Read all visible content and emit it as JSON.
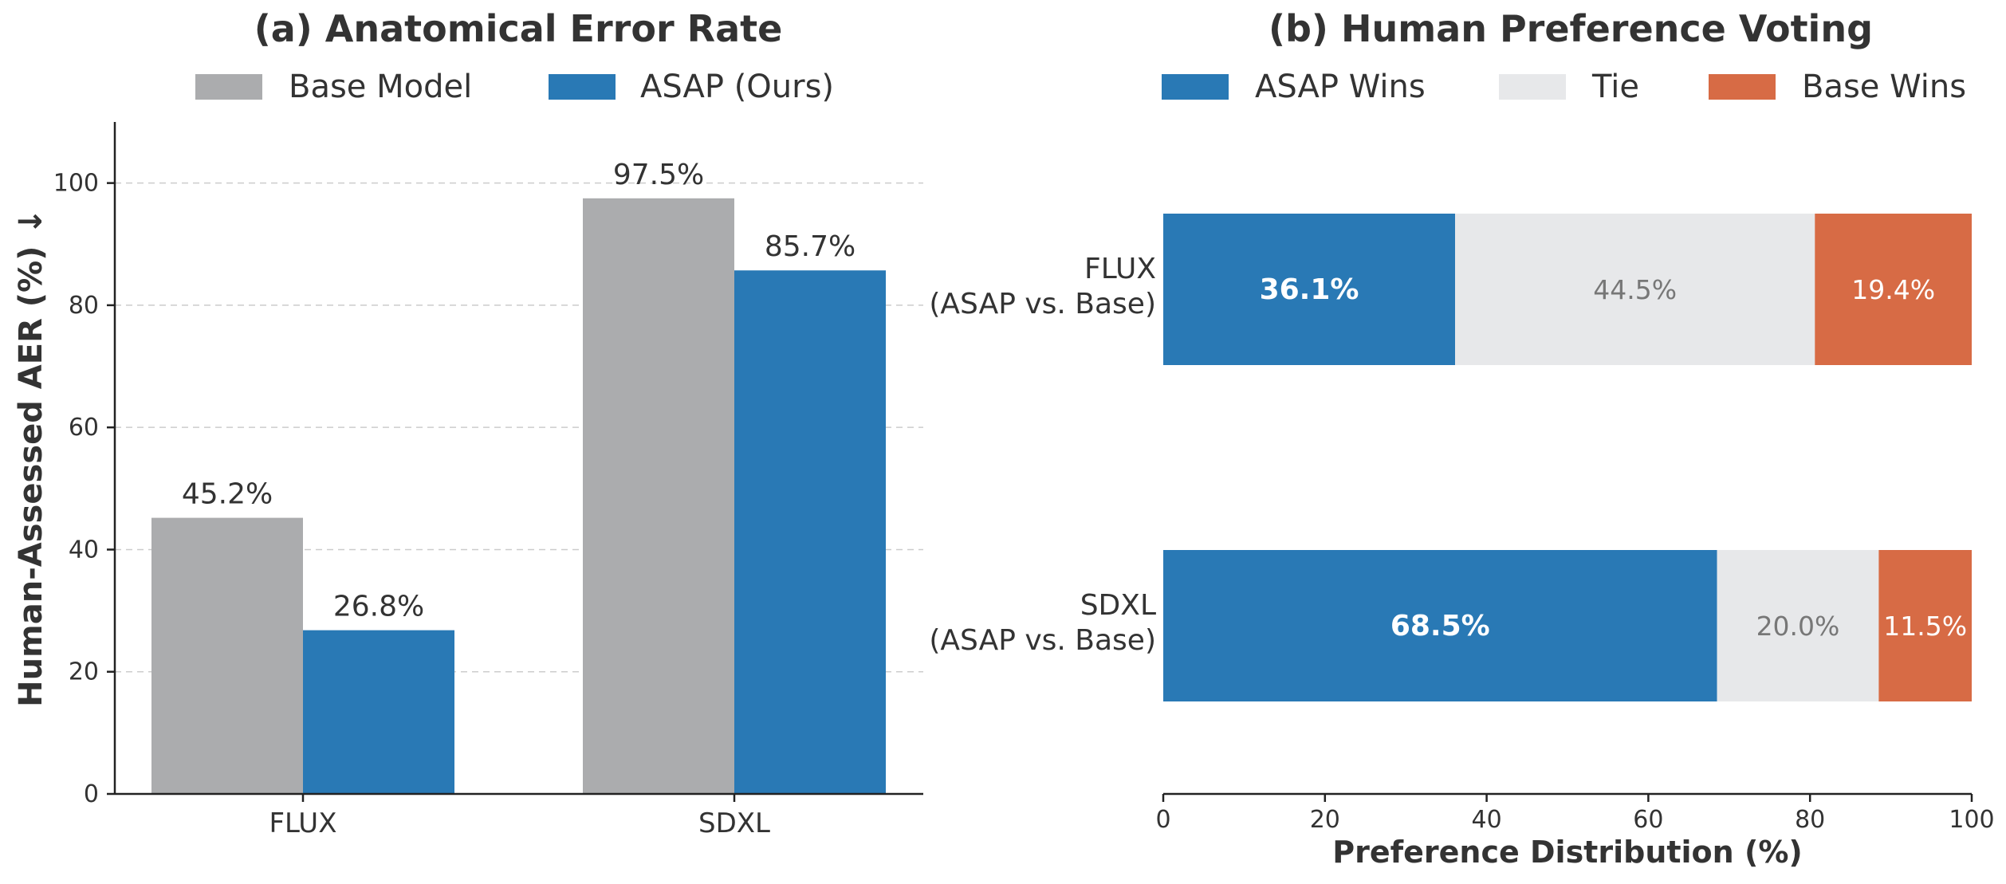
{
  "colors": {
    "base_model": "#abacae",
    "asap": "#2979b5",
    "asap_wins": "#2979b5",
    "tie": "#e7e8ea",
    "base_wins": "#d76b45",
    "axis": "#222222",
    "text": "#333333",
    "grid": "#cccccc"
  },
  "chart_data": [
    {
      "type": "bar",
      "title": "(a) Anatomical Error Rate",
      "ylabel": "Human-Assessed AER (%) ↓",
      "xlabel": "",
      "categories": [
        "FLUX",
        "SDXL"
      ],
      "series": [
        {
          "name": "Base Model",
          "values": [
            45.2,
            97.5
          ],
          "labels": [
            "45.2%",
            "97.5%"
          ]
        },
        {
          "name": "ASAP (Ours)",
          "values": [
            26.8,
            85.7
          ],
          "labels": [
            "26.8%",
            "85.7%"
          ]
        }
      ],
      "ylim": [
        0,
        110
      ],
      "yticks": [
        0,
        20,
        40,
        60,
        80,
        100
      ],
      "grid": "y-dashed",
      "legend": "top-center"
    },
    {
      "type": "bar",
      "orientation": "horizontal-stacked",
      "title": "(b) Human Preference Voting",
      "xlabel": "Preference Distribution (%)",
      "ylabel": "",
      "categories": [
        {
          "line1": "FLUX",
          "line2": "(ASAP vs. Base)"
        },
        {
          "line1": "SDXL",
          "line2": "(ASAP vs. Base)"
        }
      ],
      "series": [
        {
          "name": "ASAP Wins",
          "values": [
            36.1,
            68.5
          ],
          "labels": [
            "36.1%",
            "68.5%"
          ]
        },
        {
          "name": "Tie",
          "values": [
            44.5,
            20.0
          ],
          "labels": [
            "44.5%",
            "20.0%"
          ]
        },
        {
          "name": "Base Wins",
          "values": [
            19.4,
            11.5
          ],
          "labels": [
            "19.4%",
            "11.5%"
          ]
        }
      ],
      "xlim": [
        0,
        100
      ],
      "xticks": [
        0,
        20,
        40,
        60,
        80,
        100
      ],
      "grid": "none",
      "legend": "top-center"
    }
  ]
}
